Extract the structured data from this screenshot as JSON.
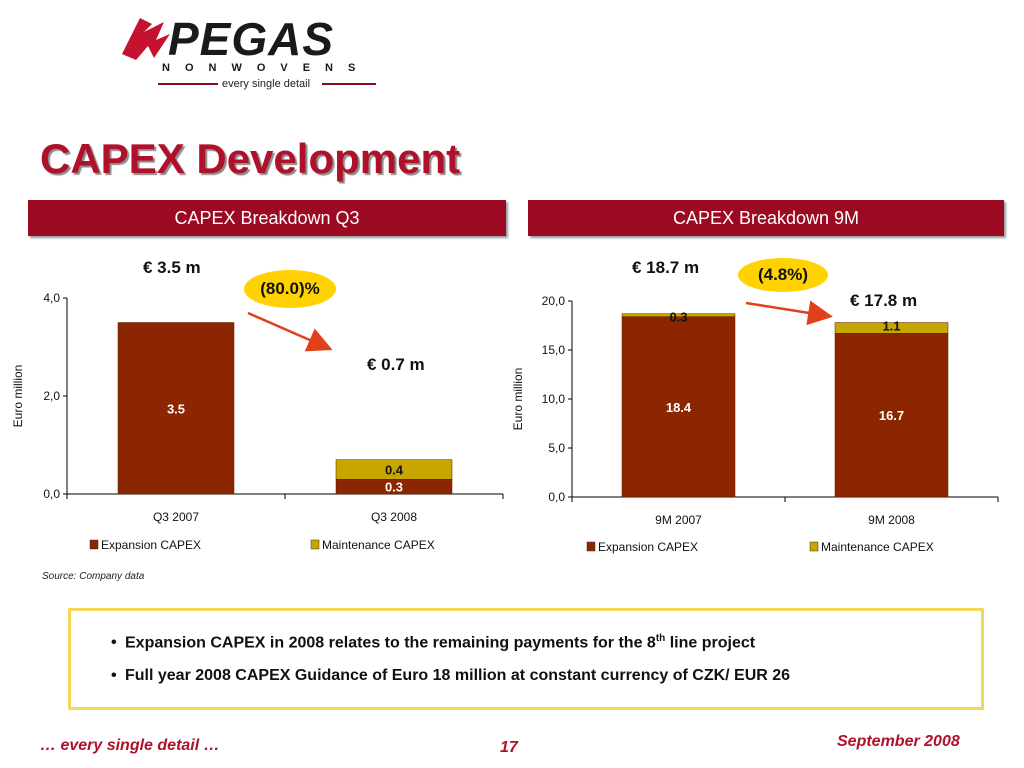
{
  "logo": {
    "name": "PEGAS",
    "subtitle": "NONWOVENS",
    "tagline": "every single detail"
  },
  "page_title": "CAPEX Development",
  "section_headers": {
    "q3": "CAPEX Breakdown Q3",
    "nine_m": "CAPEX Breakdown 9M"
  },
  "annotations": {
    "q3_total_2007": "€ 3.5 m",
    "q3_change": "(80.0)%",
    "q3_total_2008": "€ 0.7 m",
    "nine_m_total_2007": "€ 18.7 m",
    "nine_m_change": "(4.8%)",
    "nine_m_total_2008": "€ 17.8 m"
  },
  "chart_data": [
    {
      "type": "bar",
      "stacked": true,
      "categories": [
        "Q3 2007",
        "Q3 2008"
      ],
      "series": [
        {
          "name": "Expansion CAPEX",
          "values": [
            3.5,
            0.3
          ],
          "labels": [
            "3.5",
            "0.3"
          ]
        },
        {
          "name": "Maintenance CAPEX",
          "values": [
            0.0,
            0.4
          ],
          "labels": [
            "",
            "0.4"
          ]
        }
      ],
      "ylabel": "Euro million",
      "ylim": [
        0,
        4
      ],
      "yticks": [
        0,
        2,
        4
      ],
      "ytick_labels": [
        "0,0",
        "2,0",
        "4,0"
      ],
      "legend": "bottom"
    },
    {
      "type": "bar",
      "stacked": true,
      "categories": [
        "9M 2007",
        "9M 2008"
      ],
      "series": [
        {
          "name": "Expansion CAPEX",
          "values": [
            18.4,
            16.7
          ],
          "labels": [
            "18.4",
            "16.7"
          ]
        },
        {
          "name": "Maintenance CAPEX",
          "values": [
            0.3,
            1.1
          ],
          "labels": [
            "0.3",
            "1.1"
          ]
        }
      ],
      "ylabel": "Euro million",
      "ylim": [
        0,
        20
      ],
      "yticks": [
        0,
        5,
        10,
        15,
        20
      ],
      "ytick_labels": [
        "0,0",
        "5,0",
        "10,0",
        "15,0",
        "20,0"
      ],
      "legend": "bottom"
    }
  ],
  "colors": {
    "expansion": "#8b2600",
    "maintenance": "#c8a600",
    "brand": "#b0102a",
    "header_bg": "#9b0a22",
    "bubble": "#ffd200",
    "arrow": "#e0401a"
  },
  "source_note": "Source:  Company data",
  "notes": {
    "bullet1_text": "Expansion CAPEX in 2008 relates to the remaining payments for the 8",
    "bullet1_sup": "th",
    "bullet1_tail": " line project",
    "bullet2": "Full year 2008 CAPEX Guidance of Euro 18 million at constant currency of CZK/ EUR 26"
  },
  "footer": {
    "left": "… every single detail …",
    "page": "17",
    "right": "September 2008"
  }
}
